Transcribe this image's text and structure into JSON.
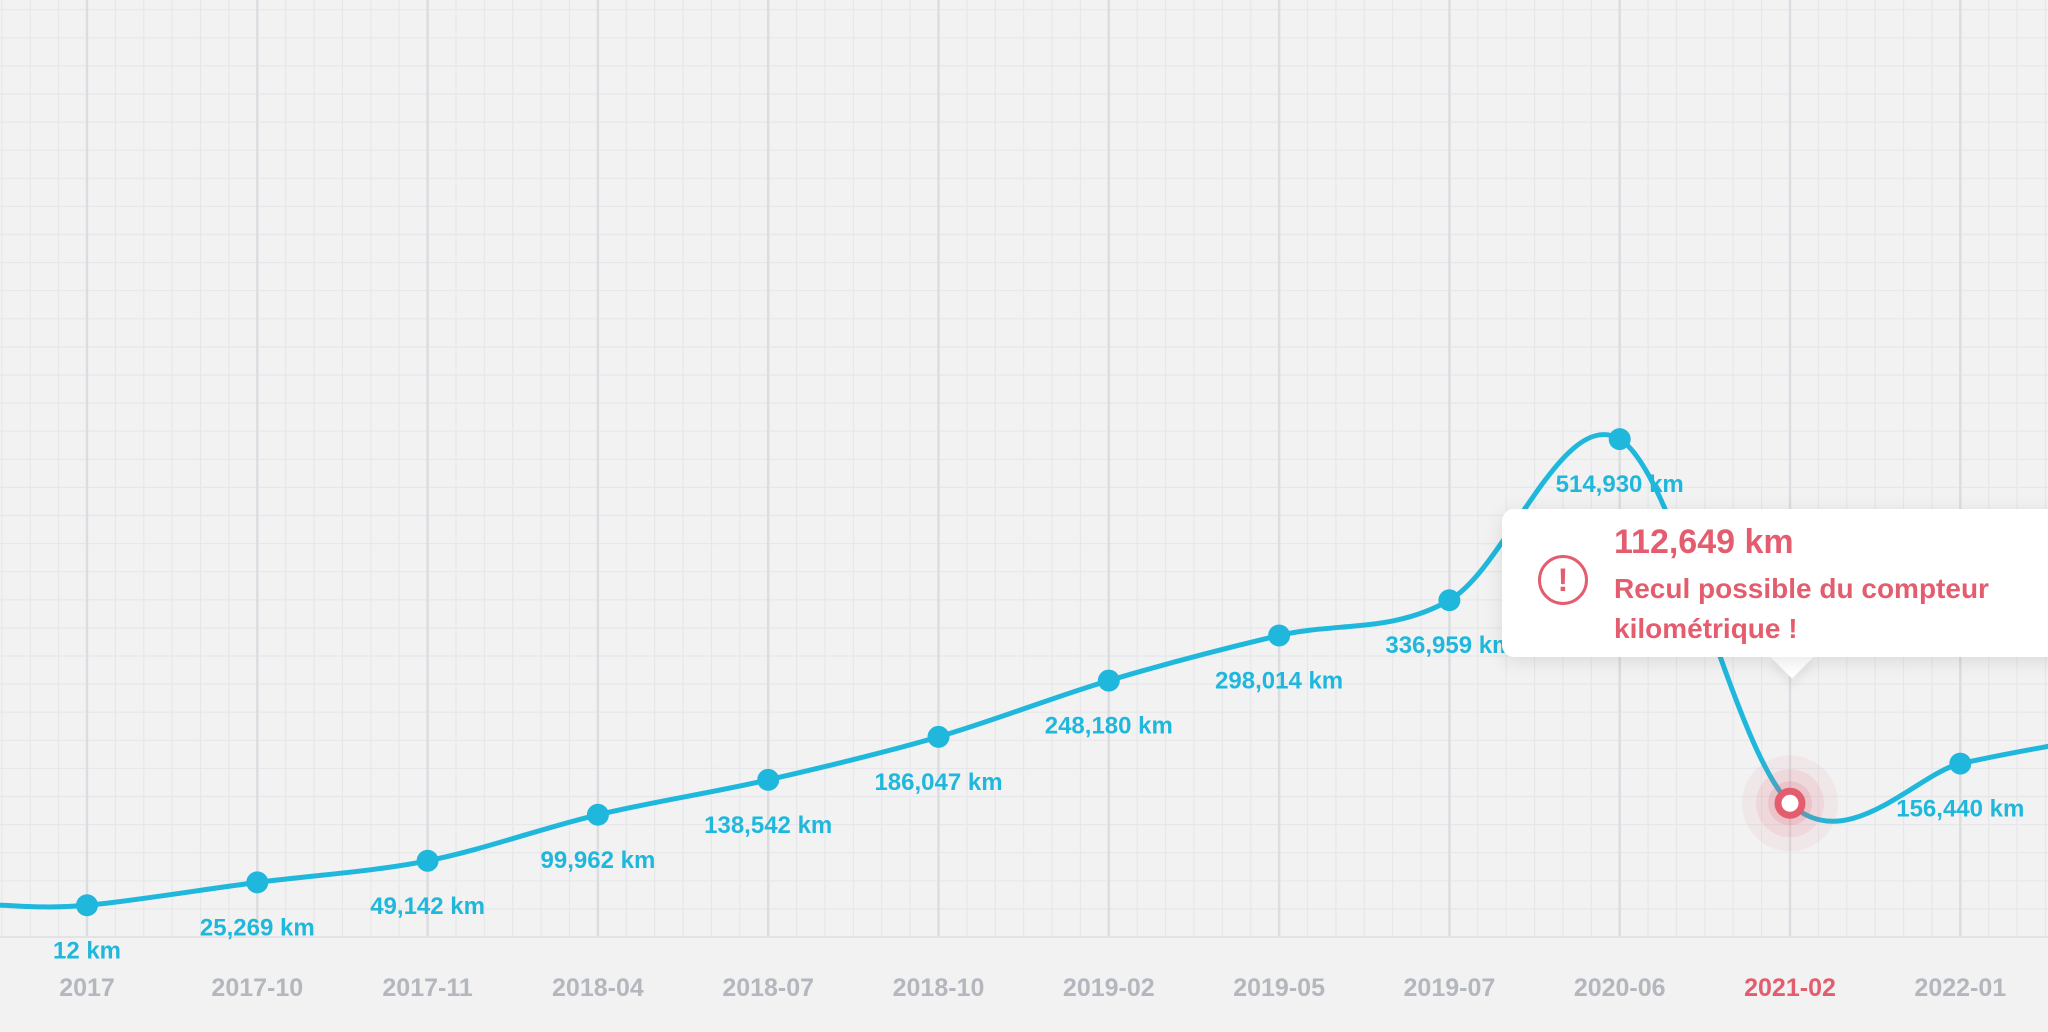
{
  "chart_data": {
    "type": "line",
    "title": "",
    "xlabel": "",
    "ylabel": "",
    "unit": "km",
    "ylim": [
      -140000,
      1000000
    ],
    "grid": true,
    "categories": [
      "2017",
      "2017-10",
      "2017-11",
      "2018-04",
      "2018-07",
      "2018-10",
      "2019-02",
      "2019-05",
      "2019-07",
      "2020-06",
      "2021-02",
      "2022-01"
    ],
    "values": [
      12,
      25269,
      49142,
      99962,
      138542,
      186047,
      248180,
      298014,
      336959,
      514930,
      112649,
      156440
    ],
    "value_labels": [
      "12 km",
      "25,269 km",
      "49,142 km",
      "99,962 km",
      "138,542 km",
      "186,047 km",
      "248,180 km",
      "298,014 km",
      "336,959 km",
      "514,930 km",
      "112,649 km",
      "156,440 km"
    ],
    "highlight_index": 10,
    "line_color": "#1fb8dc",
    "alert_color": "#e35d6f"
  },
  "tooltip": {
    "icon": "exclamation-circle-icon",
    "value": "112,649 km",
    "message": "Recul possible du compteur kilométrique !"
  }
}
